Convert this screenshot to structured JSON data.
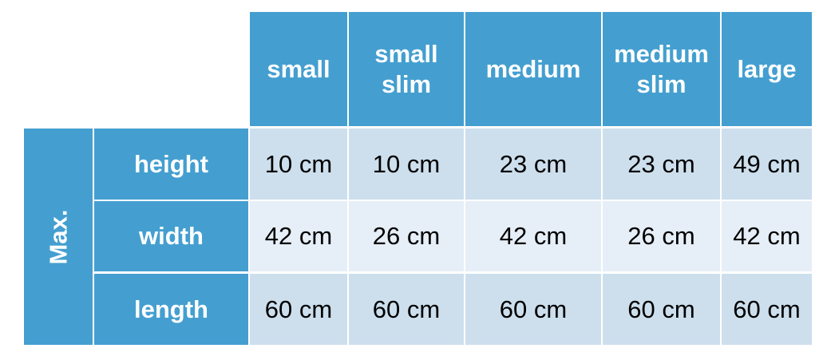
{
  "group_label": "Max.",
  "columns": [
    "small",
    "small slim",
    "medium",
    "medium slim",
    "large"
  ],
  "rows": [
    {
      "label": "height",
      "values": [
        "10 cm",
        "10 cm",
        "23 cm",
        "23 cm",
        "49 cm"
      ]
    },
    {
      "label": "width",
      "values": [
        "42 cm",
        "26 cm",
        "42 cm",
        "26 cm",
        "42 cm"
      ]
    },
    {
      "label": "length",
      "values": [
        "60 cm",
        "60 cm",
        "60 cm",
        "60 cm",
        "60 cm"
      ]
    }
  ],
  "colors": {
    "header": "#449fd0",
    "row_dark": "#cddfed",
    "row_light": "#e6eef7"
  }
}
